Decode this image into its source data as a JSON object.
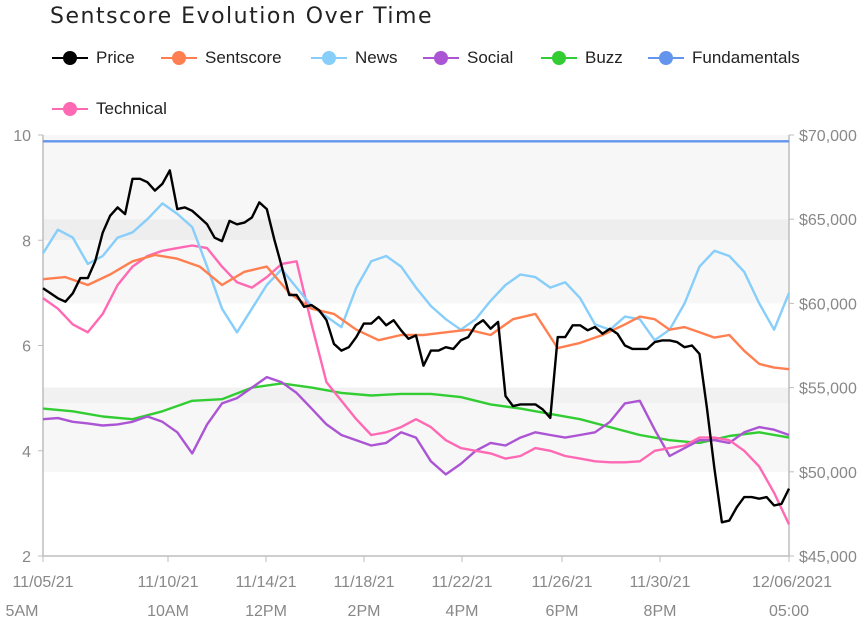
{
  "chart_data": {
    "type": "line",
    "title": "Sentscore Evolution Over Time",
    "legend_placement": "top",
    "grid": "horizontal bands",
    "x_ticks": [
      {
        "date": "11/05/21",
        "time": "5AM"
      },
      {
        "date": "11/10/21",
        "time": "10AM"
      },
      {
        "date": "11/14/21",
        "time": "12PM"
      },
      {
        "date": "11/18/21",
        "time": "2PM"
      },
      {
        "date": "11/22/21",
        "time": "4PM"
      },
      {
        "date": "11/26/21",
        "time": "6PM"
      },
      {
        "date": "11/30/21",
        "time": "8PM"
      },
      {
        "date": "12/06/2021",
        "time": "05:00"
      }
    ],
    "y_left": {
      "ticks": [
        "2",
        "4",
        "6",
        "8",
        "10"
      ],
      "range": [
        2,
        10
      ]
    },
    "y_right": {
      "ticks": [
        "$45,000",
        "$50,000",
        "$55,000",
        "$60,000",
        "$65,000",
        "$70,000"
      ],
      "range": [
        45000,
        70000
      ]
    },
    "x_range": [
      0,
      100
    ],
    "series": [
      {
        "name": "Price",
        "color": "#000000",
        "axis": "right",
        "width": 2.4,
        "x": [
          0,
          1,
          2,
          3,
          4,
          5,
          6,
          7,
          8,
          9,
          10,
          11,
          12,
          13,
          14,
          15,
          16,
          17,
          18,
          19,
          20,
          21,
          22,
          23,
          24,
          25,
          26,
          27,
          28,
          29,
          30,
          31,
          32,
          33,
          34,
          35,
          36,
          37,
          38,
          39,
          40,
          41,
          42,
          43,
          44,
          45,
          46,
          47,
          48,
          49,
          50,
          51,
          52,
          53,
          54,
          55,
          56,
          57,
          58,
          59,
          60,
          61,
          62,
          63,
          64,
          65,
          66,
          67,
          68,
          69,
          70,
          71,
          72,
          73,
          74,
          75,
          76,
          77,
          78,
          79,
          80,
          81,
          82,
          83,
          84,
          85,
          86,
          87,
          88,
          89,
          90,
          91,
          92,
          93,
          94,
          95,
          96,
          97,
          98,
          99,
          100
        ],
        "values": [
          60900,
          60600,
          60300,
          60100,
          60600,
          61500,
          61500,
          62500,
          64200,
          65200,
          65700,
          65300,
          67400,
          67400,
          67200,
          66700,
          67100,
          67900,
          65600,
          65700,
          65500,
          65100,
          64700,
          63900,
          63700,
          64900,
          64700,
          64800,
          65100,
          66000,
          65600,
          63800,
          62200,
          60500,
          60500,
          59800,
          59900,
          59600,
          59000,
          57600,
          57200,
          57400,
          58000,
          58800,
          58800,
          59200,
          58700,
          59000,
          58400,
          57900,
          58100,
          56300,
          57200,
          57200,
          57400,
          57300,
          57800,
          58000,
          58700,
          59000,
          58500,
          58900,
          54500,
          53900,
          54000,
          54000,
          54000,
          53700,
          53200,
          58000,
          58000,
          58700,
          58700,
          58400,
          58600,
          58200,
          58500,
          58200,
          57500,
          57300,
          57300,
          57300,
          57700,
          57800,
          57800,
          57700,
          57400,
          57500,
          57000,
          53800,
          50200,
          47000,
          47100,
          47900,
          48500,
          48500,
          48400,
          48500,
          48000,
          48100,
          49000
        ]
      },
      {
        "name": "Sentscore",
        "color": "#ff7f50",
        "axis": "left",
        "width": 2.4,
        "x": [
          0,
          3,
          6,
          9,
          12,
          15,
          18,
          21,
          24,
          27,
          30,
          33,
          36,
          39,
          42,
          45,
          48,
          51,
          54,
          57,
          60,
          63,
          66,
          69,
          72,
          75,
          78,
          80,
          82,
          84,
          86,
          88,
          90,
          92,
          94,
          96,
          98,
          100
        ],
        "values": [
          7.26,
          7.3,
          7.15,
          7.35,
          7.6,
          7.72,
          7.65,
          7.5,
          7.15,
          7.4,
          7.5,
          7.0,
          6.7,
          6.6,
          6.3,
          6.1,
          6.2,
          6.2,
          6.25,
          6.3,
          6.2,
          6.5,
          6.6,
          5.95,
          6.05,
          6.2,
          6.4,
          6.55,
          6.5,
          6.3,
          6.35,
          6.25,
          6.15,
          6.2,
          5.9,
          5.65,
          5.58,
          5.55
        ]
      },
      {
        "name": "News",
        "color": "#87cefa",
        "axis": "left",
        "width": 2.4,
        "x": [
          0,
          2,
          4,
          6,
          8,
          10,
          12,
          14,
          16,
          18,
          20,
          22,
          24,
          26,
          28,
          30,
          32,
          34,
          36,
          38,
          40,
          42,
          44,
          46,
          48,
          50,
          52,
          54,
          56,
          58,
          60,
          62,
          64,
          66,
          68,
          70,
          72,
          74,
          76,
          78,
          80,
          82,
          84,
          86,
          88,
          90,
          92,
          94,
          96,
          98,
          100
        ],
        "values": [
          7.75,
          8.2,
          8.05,
          7.55,
          7.7,
          8.05,
          8.15,
          8.4,
          8.7,
          8.5,
          8.25,
          7.5,
          6.7,
          6.25,
          6.7,
          7.15,
          7.45,
          7.1,
          6.75,
          6.55,
          6.35,
          7.1,
          7.6,
          7.7,
          7.5,
          7.1,
          6.75,
          6.5,
          6.3,
          6.5,
          6.85,
          7.15,
          7.35,
          7.3,
          7.1,
          7.2,
          6.9,
          6.4,
          6.3,
          6.55,
          6.5,
          6.1,
          6.3,
          6.8,
          7.5,
          7.8,
          7.7,
          7.4,
          6.8,
          6.3,
          7.0
        ]
      },
      {
        "name": "Social",
        "color": "#ab55d4",
        "axis": "left",
        "width": 2.4,
        "x": [
          0,
          2,
          4,
          6,
          8,
          10,
          12,
          14,
          16,
          18,
          20,
          22,
          24,
          26,
          28,
          30,
          32,
          34,
          36,
          38,
          40,
          42,
          44,
          46,
          48,
          50,
          52,
          54,
          56,
          58,
          60,
          62,
          64,
          66,
          68,
          70,
          72,
          74,
          76,
          78,
          80,
          82,
          84,
          86,
          88,
          90,
          92,
          94,
          96,
          98,
          100
        ],
        "values": [
          4.6,
          4.62,
          4.55,
          4.52,
          4.48,
          4.5,
          4.55,
          4.65,
          4.55,
          4.35,
          3.95,
          4.5,
          4.9,
          5.0,
          5.2,
          5.4,
          5.3,
          5.1,
          4.8,
          4.5,
          4.3,
          4.2,
          4.1,
          4.15,
          4.35,
          4.25,
          3.8,
          3.55,
          3.75,
          4.0,
          4.15,
          4.1,
          4.25,
          4.35,
          4.3,
          4.25,
          4.3,
          4.35,
          4.55,
          4.9,
          4.95,
          4.4,
          3.9,
          4.05,
          4.2,
          4.2,
          4.15,
          4.35,
          4.45,
          4.4,
          4.3
        ]
      },
      {
        "name": "Buzz",
        "color": "#32cd32",
        "axis": "left",
        "width": 2.4,
        "x": [
          0,
          4,
          8,
          12,
          16,
          20,
          24,
          28,
          32,
          36,
          40,
          44,
          48,
          52,
          56,
          60,
          64,
          68,
          72,
          76,
          80,
          84,
          88,
          92,
          96,
          100
        ],
        "values": [
          4.8,
          4.75,
          4.65,
          4.6,
          4.75,
          4.95,
          4.98,
          5.2,
          5.28,
          5.2,
          5.1,
          5.05,
          5.08,
          5.08,
          5.02,
          4.88,
          4.8,
          4.7,
          4.6,
          4.45,
          4.3,
          4.2,
          4.15,
          4.28,
          4.35,
          4.25
        ]
      },
      {
        "name": "Fundamentals",
        "color": "#6495ed",
        "axis": "left",
        "width": 2.4,
        "x": [
          0,
          100
        ],
        "values": [
          9.88,
          9.88
        ]
      },
      {
        "name": "Technical",
        "color": "#ff69b4",
        "axis": "left",
        "width": 2.4,
        "x": [
          0,
          2,
          4,
          6,
          8,
          10,
          12,
          14,
          16,
          18,
          20,
          22,
          24,
          26,
          28,
          30,
          32,
          34,
          36,
          38,
          40,
          42,
          44,
          46,
          48,
          50,
          52,
          54,
          56,
          58,
          60,
          62,
          64,
          66,
          68,
          70,
          72,
          74,
          76,
          78,
          80,
          82,
          84,
          86,
          88,
          90,
          92,
          94,
          96,
          98,
          100
        ],
        "values": [
          6.9,
          6.7,
          6.4,
          6.25,
          6.6,
          7.15,
          7.5,
          7.7,
          7.8,
          7.85,
          7.9,
          7.85,
          7.5,
          7.2,
          7.1,
          7.3,
          7.55,
          7.6,
          6.4,
          5.3,
          4.95,
          4.6,
          4.3,
          4.35,
          4.45,
          4.6,
          4.45,
          4.2,
          4.05,
          4.0,
          3.95,
          3.85,
          3.9,
          4.05,
          4.0,
          3.9,
          3.85,
          3.8,
          3.78,
          3.78,
          3.8,
          4.0,
          4.05,
          4.1,
          4.25,
          4.25,
          4.2,
          4.0,
          3.7,
          3.2,
          2.6
        ]
      }
    ]
  }
}
